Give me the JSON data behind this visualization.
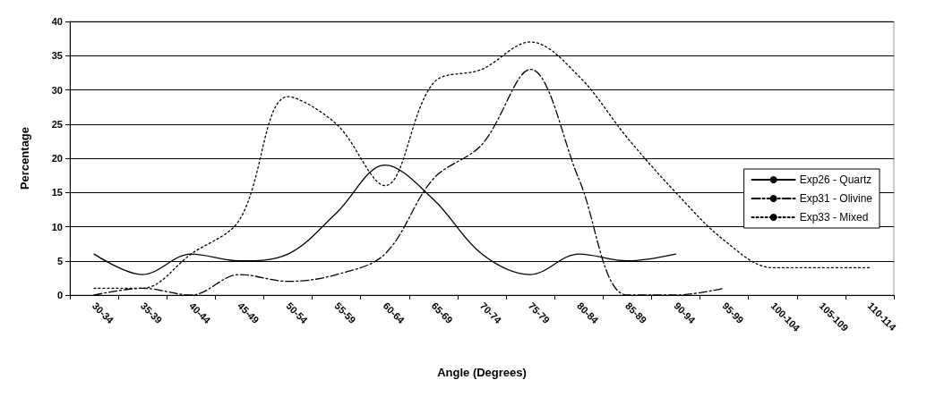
{
  "chart_data": {
    "type": "line",
    "xlabel": "Angle (Degrees)",
    "ylabel": "Percentage",
    "categories": [
      "30-34",
      "35-39",
      "40-44",
      "45-49",
      "50-54",
      "55-59",
      "60-64",
      "65-69",
      "70-74",
      "75-79",
      "80-84",
      "85-89",
      "90-94",
      "95-99",
      "100-104",
      "105-109",
      "110-114"
    ],
    "ylim": [
      0,
      40
    ],
    "yticks": [
      0,
      5,
      10,
      15,
      20,
      25,
      30,
      35,
      40
    ],
    "grid": "y",
    "legend": "right",
    "marker": "none",
    "series": [
      {
        "name": "Exp26 - Quartz",
        "color": "#000000",
        "line_style": "solid",
        "values": [
          6,
          3,
          6,
          5,
          6,
          12,
          19,
          14,
          6,
          3,
          6,
          5,
          6,
          null,
          null,
          null,
          null
        ]
      },
      {
        "name": "Exp31 - Olivine",
        "color": "#000000",
        "line_style": "dashed",
        "values": [
          0,
          1,
          0,
          3,
          2,
          3,
          6,
          17,
          22,
          33,
          17,
          0,
          0,
          1,
          null,
          null,
          null
        ]
      },
      {
        "name": "Exp33 - Mixed",
        "color": "#000000",
        "line_style": "dotted",
        "values": [
          1,
          1,
          6,
          11,
          29,
          25,
          16,
          31,
          33,
          37,
          32,
          23,
          15,
          8,
          4,
          4,
          4
        ]
      }
    ]
  }
}
